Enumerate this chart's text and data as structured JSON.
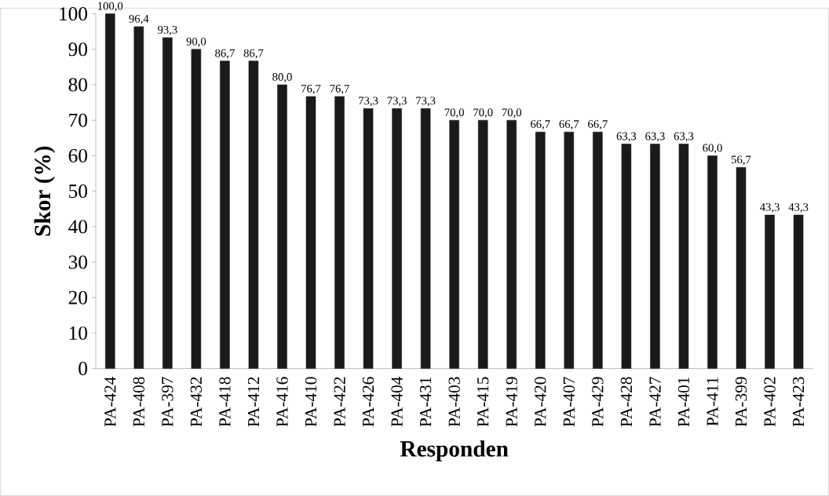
{
  "chart_data": {
    "type": "bar",
    "xlabel": "Responden",
    "ylabel": "Skor (%)",
    "categories": [
      "PA-424",
      "PA-408",
      "PA-397",
      "PA-432",
      "PA-418",
      "PA-412",
      "PA-416",
      "PA-410",
      "PA-422",
      "PA-426",
      "PA-404",
      "PA-431",
      "PA-403",
      "PA-415",
      "PA-419",
      "PA-420",
      "PA-407",
      "PA-429",
      "PA-428",
      "PA-427",
      "PA-401",
      "PA-411",
      "PA-399",
      "PA-402",
      "PA-423"
    ],
    "values": [
      100,
      96.4,
      93.3,
      90,
      86.7,
      86.7,
      80,
      76.7,
      76.7,
      73.3,
      73.3,
      73.3,
      70,
      70,
      70,
      66.7,
      66.7,
      66.7,
      63.3,
      63.3,
      63.3,
      60,
      56.7,
      43.3,
      43.3
    ],
    "value_labels": [
      "100,0",
      "96,4",
      "93,3",
      "90,0",
      "86,7",
      "86,7",
      "80,0",
      "76,7",
      "76,7",
      "73,3",
      "73,3",
      "73,3",
      "70,0",
      "70,0",
      "70,0",
      "66,7",
      "66,7",
      "66,7",
      "63,3",
      "63,3",
      "63,3",
      "60,0",
      "56,7",
      "43,3",
      "43,3"
    ],
    "color": "#1a1a1a",
    "ylim": [
      0,
      100
    ],
    "yticks": [
      0,
      10,
      20,
      30,
      40,
      50,
      60,
      70,
      80,
      90,
      100
    ],
    "grid": false
  }
}
